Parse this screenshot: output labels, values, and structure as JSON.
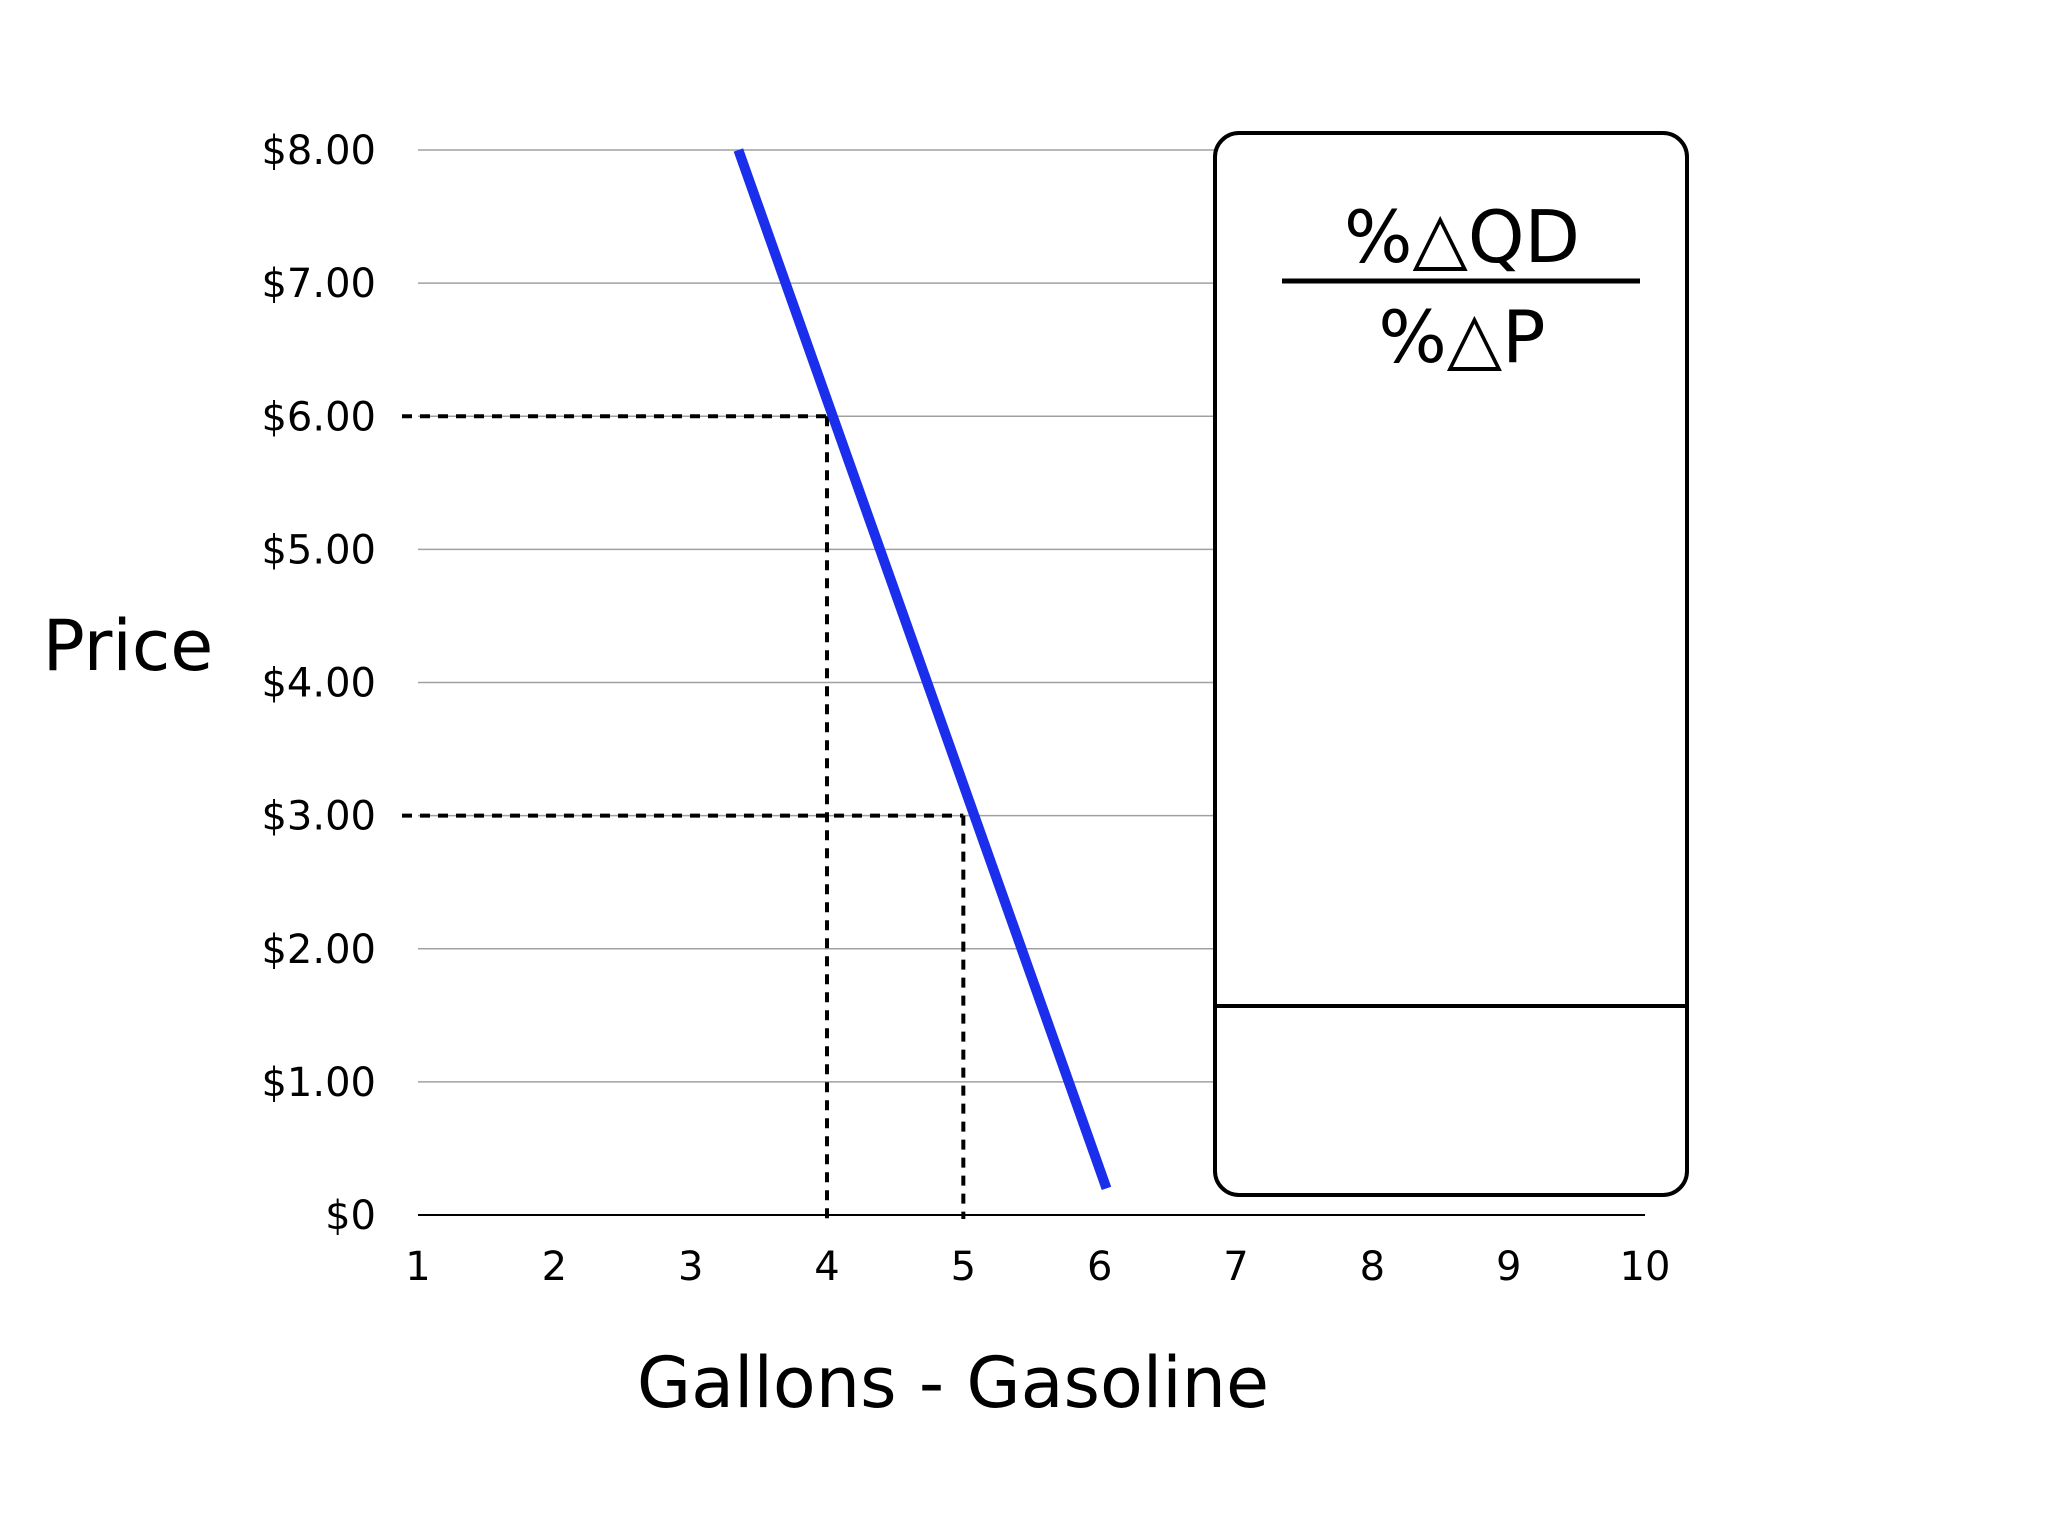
{
  "chart_data": {
    "type": "line",
    "title": "",
    "xlabel": "Gallons - Gasoline",
    "ylabel": "Price",
    "xlim": [
      1,
      10
    ],
    "ylim": [
      0,
      8
    ],
    "x_ticks": [
      "1",
      "2",
      "3",
      "4",
      "5",
      "6",
      "7",
      "8",
      "9",
      "10"
    ],
    "y_ticks": [
      "$0",
      "$1.00",
      "$2.00",
      "$3.00",
      "$4.00",
      "$5.00",
      "$6.00",
      "$7.00",
      "$8.00"
    ],
    "grid": true,
    "series": [
      {
        "color": "#1a2eec",
        "points": [
          {
            "x": 3.35,
            "y": 8.0
          },
          {
            "x": 6.05,
            "y": 0.2
          }
        ]
      }
    ],
    "reference_points": [
      {
        "x": 4,
        "y": 6.0
      },
      {
        "x": 5,
        "y": 3.0
      }
    ],
    "formula_box": {
      "numerator": "%△QD",
      "denominator": "%△P"
    }
  }
}
